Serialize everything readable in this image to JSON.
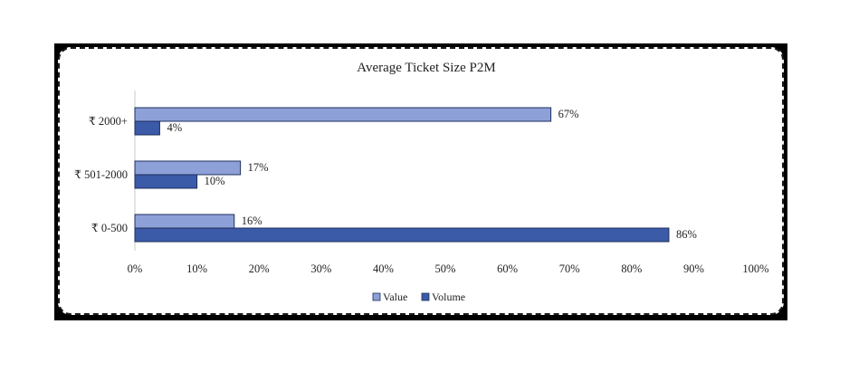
{
  "chart_data": {
    "type": "bar",
    "orientation": "horizontal",
    "title": "Average Ticket Size P2M",
    "categories": [
      "₹ 2000+",
      "₹ 501-2000",
      "₹ 0-500"
    ],
    "series": [
      {
        "name": "Value",
        "values": [
          67,
          17,
          16
        ],
        "labels": [
          "67%",
          "17%",
          "16%"
        ],
        "color": "#8ea0d8"
      },
      {
        "name": "Volume",
        "values": [
          4,
          10,
          86
        ],
        "labels": [
          "4%",
          "10%",
          "86%"
        ],
        "color": "#3b5aa8"
      }
    ],
    "xlim": [
      0,
      100
    ],
    "xticks": [
      "0%",
      "10%",
      "20%",
      "30%",
      "40%",
      "50%",
      "60%",
      "70%",
      "80%",
      "90%",
      "100%"
    ],
    "grid": false,
    "legend_position": "bottom"
  }
}
